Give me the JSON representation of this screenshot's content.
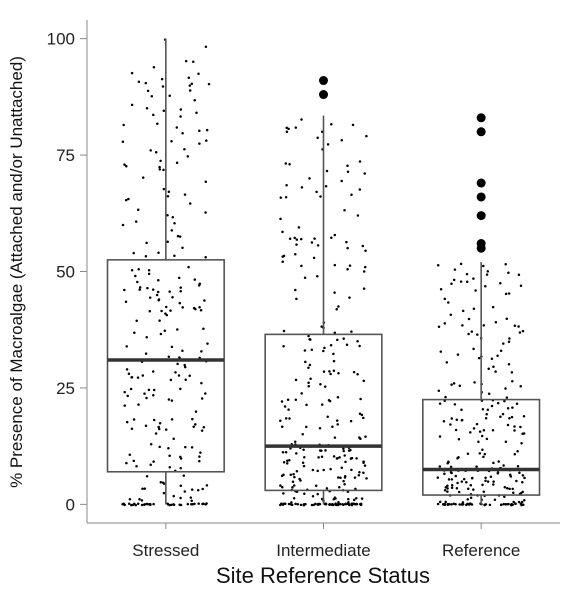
{
  "chart_data": {
    "type": "boxplot",
    "title": "",
    "xlabel": "Site Reference Status",
    "ylabel": "% Presence of Macroalgae (Attached and/or Unattached)",
    "categories": [
      "Stressed",
      "Intermediate",
      "Reference"
    ],
    "ylim": [
      -4,
      104
    ],
    "yticks": [
      0,
      25,
      50,
      75,
      100
    ],
    "grid": false,
    "legend": "none",
    "boxes": [
      {
        "category": "Stressed",
        "whisker_low": 0,
        "q1": 7,
        "median": 31,
        "q3": 52.5,
        "whisker_high": 100,
        "outliers": []
      },
      {
        "category": "Intermediate",
        "whisker_low": 0,
        "q1": 3,
        "median": 12.5,
        "q3": 36.5,
        "whisker_high": 83.5,
        "outliers": [
          88,
          91
        ]
      },
      {
        "category": "Reference",
        "whisker_low": 0,
        "q1": 2,
        "median": 7.5,
        "q3": 22.5,
        "whisker_high": 52,
        "outliers": [
          55,
          56,
          62,
          66,
          69,
          80,
          83
        ]
      }
    ],
    "jitter_points": {
      "counts": [
        260,
        300,
        260
      ],
      "spread": 0.55
    },
    "colors": {
      "box_line": "#555555",
      "median_line": "#333333",
      "points": "#000000",
      "axis": "#888888",
      "background": "#ffffff"
    }
  }
}
